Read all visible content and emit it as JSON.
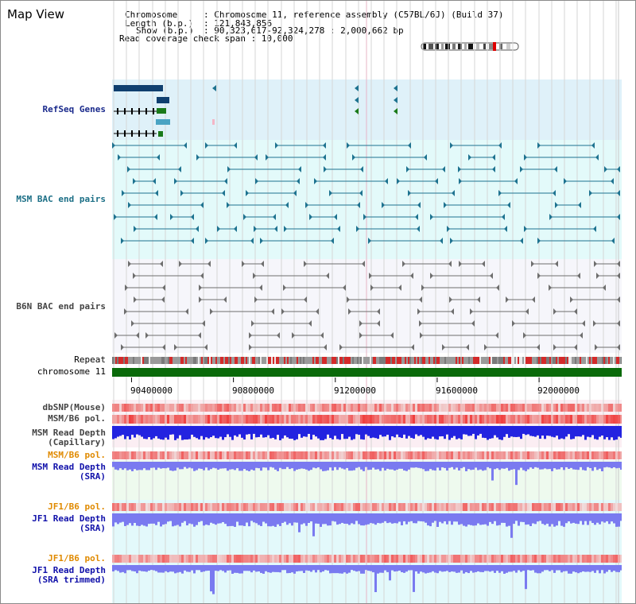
{
  "page": {
    "title": "Map View"
  },
  "info": {
    "chromosome_key": "Chromosome",
    "chromosome_val": ": Chromosome 11, reference assembly (C57BL/6J) (Build 37)",
    "length_key": "Length (b.p.)",
    "length_val": ": 121,843,856",
    "show_key": "Show (b.p.)",
    "show_val": ": 90,323,617-92,324,278 : 2,000,662 bp",
    "span_text": "Read coverage check span : 10,000"
  },
  "tracks": {
    "refseq": "RefSeq Genes",
    "msm_bac": "MSM BAC end pairs",
    "b6n_bac": "B6N BAC end pairs",
    "repeat": "Repeat",
    "chromosome": "chromosome 11",
    "dbsnp": "dbSNP(Mouse)",
    "msm_b6_pol": "MSM/B6 pol.",
    "msm_depth_cap_1": "MSM Read Depth",
    "msm_depth_cap_2": "(Capillary)",
    "msm_b6_pol_2": "MSM/B6 pol.",
    "msm_depth_sra_1": "MSM Read Depth",
    "msm_depth_sra_2": "(SRA)",
    "jf1_b6_pol": "JF1/B6 pol.",
    "jf1_depth_sra_1": "JF1 Read Depth",
    "jf1_depth_sra_2": "(SRA)",
    "jf1_b6_pol_2": "JF1/B6 pol.",
    "jf1_depth_trim_1": "JF1 Read Depth",
    "jf1_depth_trim_2": "(SRA trimmed)"
  },
  "axis": {
    "ticks": [
      "90400000",
      "90800000",
      "91200000",
      "91600000",
      "92000000"
    ],
    "tick_values": [
      90400000,
      90800000,
      91200000,
      91600000,
      92000000
    ],
    "range": [
      90323617,
      92324278
    ]
  },
  "colors": {
    "refseq_bg": "#dff1f9",
    "msm_bg": "#e3fafa",
    "b6n_bg": "#f6f6fb",
    "feature_dark": "#0f3f6f",
    "feature_teal": "#1e7390",
    "feature_gray": "#6e6e6e",
    "chromosome_bar": "#0a6a0a",
    "depth_blue": "#2323e0",
    "depth_light": "#7a7af0",
    "pol_red": "#ea4a4a"
  }
}
